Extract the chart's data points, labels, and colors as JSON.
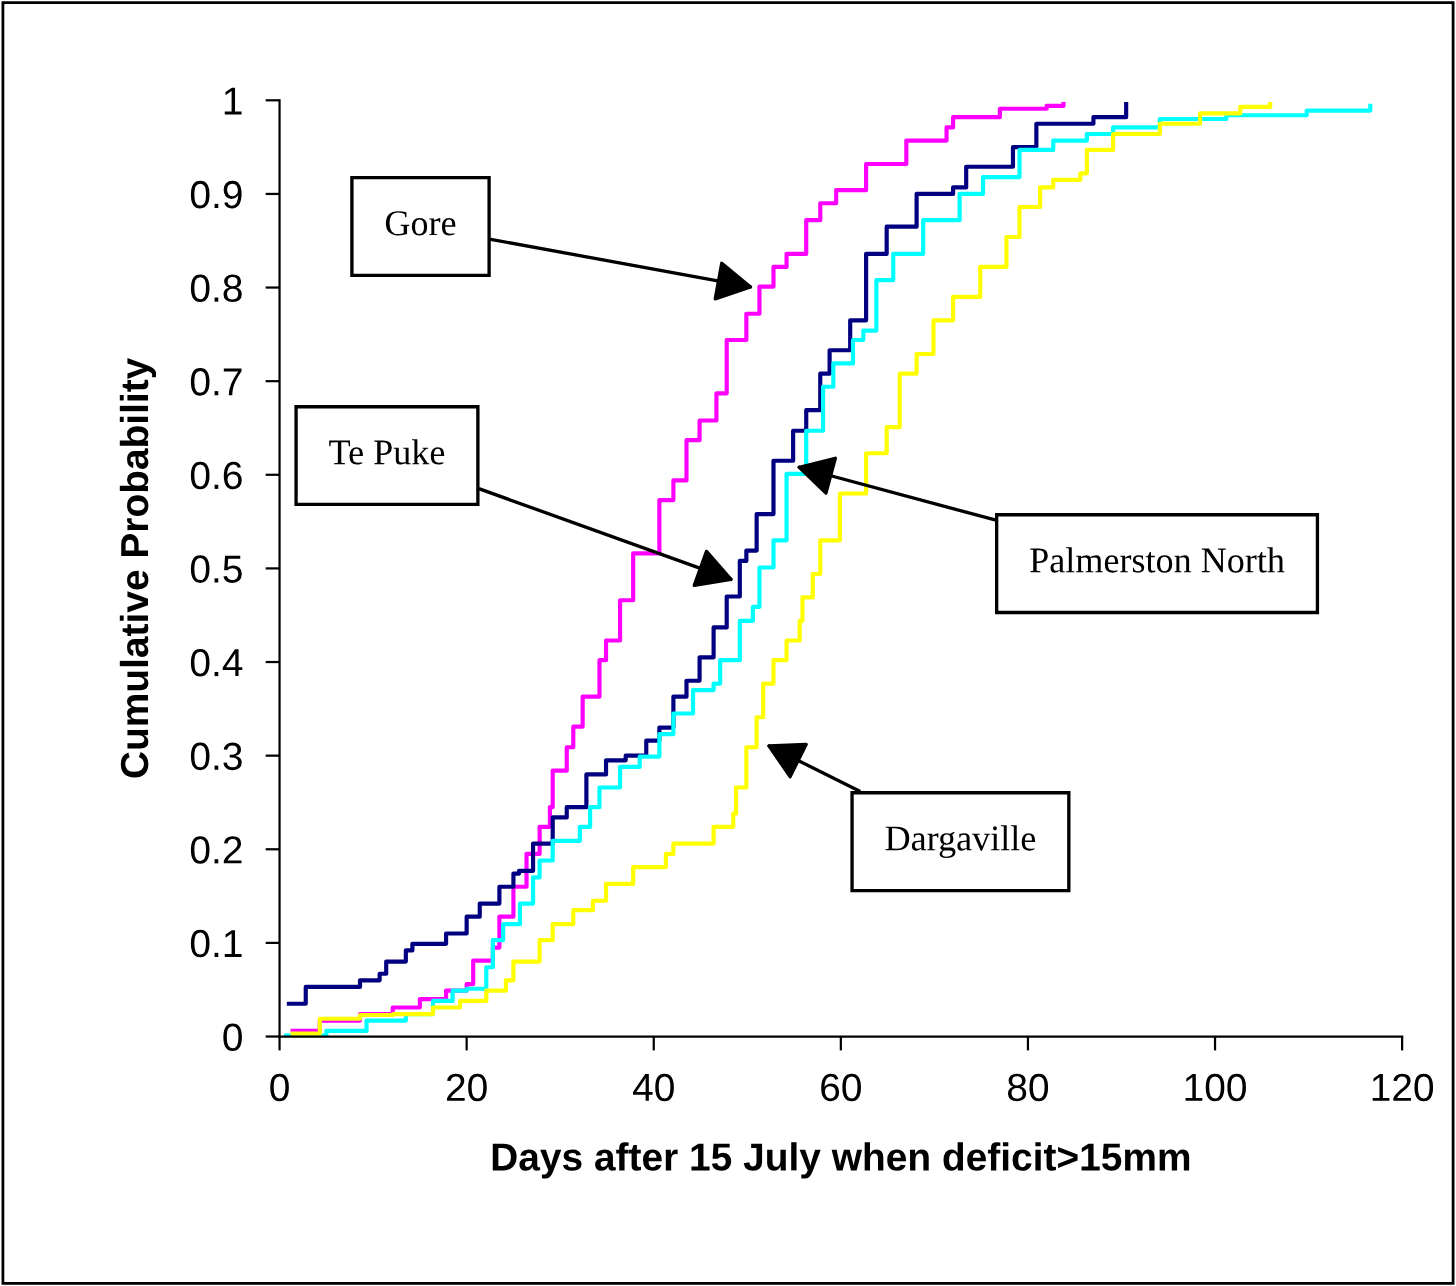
{
  "chart_data": {
    "type": "step",
    "xlabel": "Days after 15 July when deficit>15mm",
    "ylabel": "Cumulative Probability",
    "xlim": [
      0,
      120
    ],
    "xticks": [
      0,
      20,
      40,
      60,
      80,
      100,
      120
    ],
    "ylim": [
      0,
      1
    ],
    "yticks": [
      0,
      0.1,
      0.2,
      0.3,
      0.4,
      0.5,
      0.6,
      0.7,
      0.8,
      0.9,
      1
    ],
    "grid": false,
    "legend": false,
    "marker": "none",
    "line_style": "solid",
    "series": [
      {
        "color": "#ff00ff",
        "x": [
          1.4,
          4.3,
          8.6,
          12.1,
          15,
          17.8,
          20,
          20.7,
          22.8,
          23.5,
          25,
          26.4,
          27.8,
          28.9,
          29.2,
          30.7,
          31.4,
          32.4,
          34.2,
          34.9,
          36.4,
          37.8,
          40.6,
          42.1,
          43.5,
          44.9,
          46.7,
          47.8,
          49.9,
          51.3,
          52.8,
          54.2,
          56.3,
          57.8,
          59.5,
          62.7,
          67,
          71.3,
          72,
          77,
          82,
          83.8
        ],
        "values": [
          0.006,
          0.017,
          0.024,
          0.031,
          0.04,
          0.049,
          0.056,
          0.081,
          0.095,
          0.128,
          0.16,
          0.195,
          0.224,
          0.245,
          0.284,
          0.309,
          0.331,
          0.363,
          0.402,
          0.423,
          0.466,
          0.516,
          0.573,
          0.594,
          0.637,
          0.658,
          0.687,
          0.744,
          0.772,
          0.801,
          0.822,
          0.836,
          0.872,
          0.89,
          0.904,
          0.932,
          0.957,
          0.971,
          0.982,
          0.991,
          0.994,
          0.996
        ]
      },
      {
        "color": "#000080",
        "x": [
          1,
          2.8,
          8.6,
          10.7,
          11.4,
          13.5,
          14.2,
          17.8,
          20,
          21.4,
          23.5,
          25,
          25.6,
          27.1,
          29.2,
          30.7,
          32.8,
          34.9,
          37,
          39.2,
          40.6,
          42.1,
          43.5,
          44.9,
          46.4,
          47.8,
          49.2,
          49.9,
          51,
          52.8,
          54.9,
          56.3,
          57.8,
          58.8,
          61,
          62.7,
          64.9,
          68.1,
          72,
          73.4,
          78.4,
          80.9,
          87,
          90.5
        ],
        "values": [
          0.035,
          0.053,
          0.06,
          0.067,
          0.08,
          0.092,
          0.099,
          0.11,
          0.128,
          0.142,
          0.16,
          0.174,
          0.177,
          0.206,
          0.234,
          0.245,
          0.28,
          0.295,
          0.3,
          0.316,
          0.33,
          0.363,
          0.38,
          0.405,
          0.437,
          0.47,
          0.508,
          0.519,
          0.558,
          0.615,
          0.647,
          0.669,
          0.708,
          0.733,
          0.765,
          0.836,
          0.865,
          0.9,
          0.907,
          0.929,
          0.95,
          0.975,
          0.982,
          0.996
        ]
      },
      {
        "color": "#00ffff",
        "x": [
          0.7,
          5,
          9.3,
          13.5,
          16.4,
          18.5,
          20,
          22.1,
          22.8,
          23.9,
          25.7,
          27.1,
          27.8,
          29.2,
          32.1,
          33.2,
          34.2,
          36.4,
          38.5,
          40.6,
          42.1,
          44.2,
          46.4,
          47.1,
          49.2,
          50.6,
          51.3,
          52.8,
          54.2,
          56.3,
          58.1,
          59.2,
          61.3,
          62.4,
          63.8,
          65.6,
          68.8,
          72.7,
          75.2,
          79.1,
          82.7,
          86.3,
          89.1,
          94.1,
          101.2,
          109.8,
          116.6
        ],
        "values": [
          0.001,
          0.006,
          0.017,
          0.024,
          0.038,
          0.049,
          0.051,
          0.074,
          0.103,
          0.12,
          0.142,
          0.17,
          0.188,
          0.209,
          0.224,
          0.245,
          0.266,
          0.288,
          0.299,
          0.323,
          0.345,
          0.37,
          0.377,
          0.402,
          0.444,
          0.459,
          0.501,
          0.53,
          0.601,
          0.647,
          0.694,
          0.719,
          0.744,
          0.754,
          0.808,
          0.836,
          0.872,
          0.9,
          0.918,
          0.947,
          0.957,
          0.964,
          0.971,
          0.98,
          0.984,
          0.989,
          0.994
        ]
      },
      {
        "color": "#ffff00",
        "x": [
          1.4,
          4.3,
          8.6,
          12.1,
          16.4,
          19.3,
          22.1,
          24.2,
          25,
          27.8,
          29.2,
          31.4,
          33.5,
          34.9,
          37.8,
          41.3,
          42.1,
          46.4,
          48.5,
          48.8,
          49.9,
          51,
          51.7,
          52.8,
          54.2,
          55.6,
          55.9,
          57,
          57.8,
          59.9,
          62.7,
          64.9,
          66.3,
          68.1,
          69.9,
          72,
          74.9,
          77.7,
          79.1,
          81.3,
          82.7,
          85.6,
          86.3,
          89.1,
          94.1,
          98.4,
          102.7,
          105.9
        ],
        "values": [
          0.003,
          0.019,
          0.023,
          0.024,
          0.031,
          0.038,
          0.049,
          0.06,
          0.08,
          0.103,
          0.12,
          0.135,
          0.145,
          0.163,
          0.181,
          0.195,
          0.206,
          0.224,
          0.238,
          0.266,
          0.309,
          0.341,
          0.377,
          0.402,
          0.423,
          0.444,
          0.469,
          0.494,
          0.53,
          0.58,
          0.623,
          0.651,
          0.708,
          0.729,
          0.765,
          0.79,
          0.822,
          0.854,
          0.886,
          0.907,
          0.915,
          0.922,
          0.947,
          0.964,
          0.975,
          0.986,
          0.993,
          0.996
        ]
      }
    ],
    "annotations": [
      {
        "text": "Gore",
        "x": 50.7,
        "y": 0.8
      },
      {
        "text": "Te Puke",
        "x": 48.6,
        "y": 0.487
      },
      {
        "text": "Palmerston North",
        "x": 55.2,
        "y": 0.609
      },
      {
        "text": "Dargaville",
        "x": 52,
        "y": 0.312
      }
    ]
  }
}
